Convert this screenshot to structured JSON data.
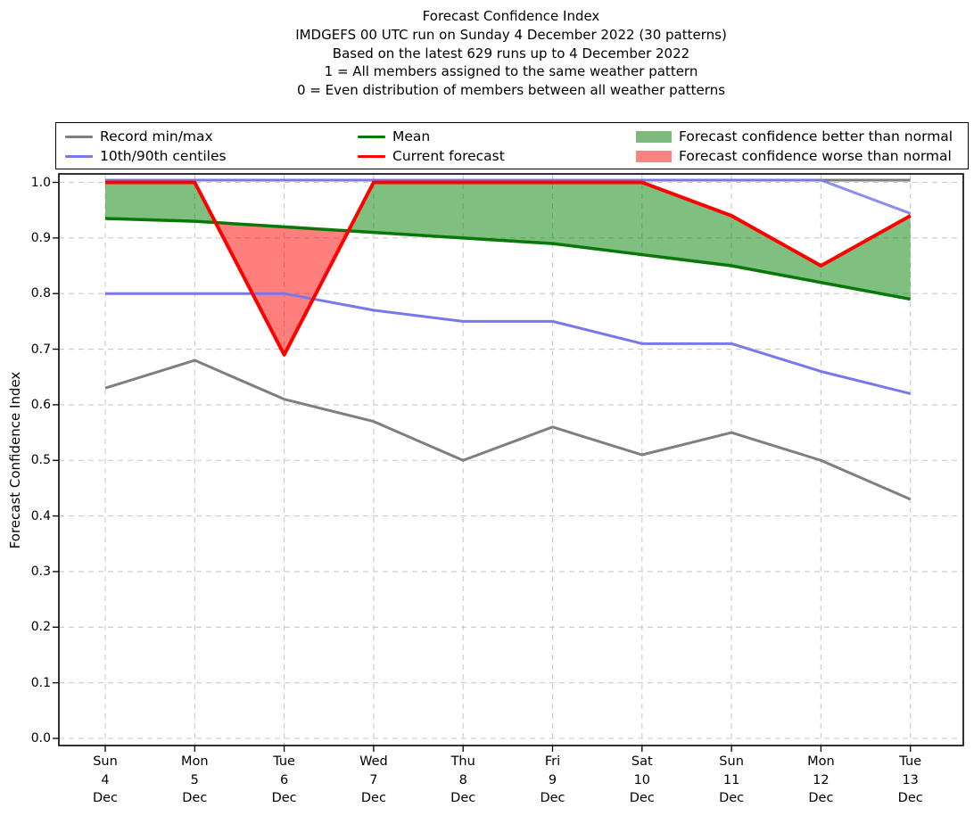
{
  "title_lines": [
    "Forecast Confidence Index",
    "IMDGEFS 00 UTC run on Sunday 4 December 2022 (30 patterns)",
    "Based on the latest 629 runs up to 4 December 2022",
    "1 = All members assigned to the same weather pattern",
    "0 = Even distribution of members between all weather patterns"
  ],
  "y_axis_label": "Forecast Confidence Index",
  "legend": {
    "entries": [
      {
        "label": "Record min/max",
        "swatch": "line",
        "color": "#7f7f7f"
      },
      {
        "label": "10th/90th centiles",
        "swatch": "line",
        "color": "#7878ee"
      },
      {
        "label": "Mean",
        "swatch": "line",
        "color": "#087808"
      },
      {
        "label": "Current forecast",
        "swatch": "line",
        "color": "#ff0000"
      },
      {
        "label": "Forecast confidence better than normal",
        "swatch": "patch",
        "color": "#7cbb7c"
      },
      {
        "label": "Forecast confidence worse than normal",
        "swatch": "patch",
        "color": "#fb8383"
      }
    ]
  },
  "chart_data": {
    "type": "line",
    "title": "Forecast Confidence Index",
    "x_tick_labels": [
      [
        "Sun",
        "4",
        "Dec"
      ],
      [
        "Mon",
        "5",
        "Dec"
      ],
      [
        "Tue",
        "6",
        "Dec"
      ],
      [
        "Wed",
        "7",
        "Dec"
      ],
      [
        "Thu",
        "8",
        "Dec"
      ],
      [
        "Fri",
        "9",
        "Dec"
      ],
      [
        "Sat",
        "10",
        "Dec"
      ],
      [
        "Sun",
        "11",
        "Dec"
      ],
      [
        "Mon",
        "12",
        "Dec"
      ],
      [
        "Tue",
        "13",
        "Dec"
      ]
    ],
    "y_ticks": [
      0.0,
      0.1,
      0.2,
      0.3,
      0.4,
      0.5,
      0.6,
      0.7,
      0.8,
      0.9,
      1.0
    ],
    "ylim": [
      -0.015,
      1.01
    ],
    "ylabel": "Forecast Confidence Index",
    "grid": true,
    "grid_color": "#cacaca",
    "series": [
      {
        "name": "Record max",
        "legend": "Record min/max",
        "color": "#7f7f7f",
        "width": 3,
        "values": [
          1.0,
          1.0,
          1.0,
          1.0,
          1.0,
          1.0,
          1.0,
          1.0,
          1.0,
          1.0
        ]
      },
      {
        "name": "Record min",
        "legend": "Record min/max",
        "color": "#7f7f7f",
        "width": 3,
        "values": [
          0.63,
          0.68,
          0.61,
          0.57,
          0.5,
          0.56,
          0.51,
          0.55,
          0.5,
          0.43
        ]
      },
      {
        "name": "90th centile",
        "legend": "10th/90th centiles",
        "color": "#7878ee",
        "width": 3,
        "values": [
          1.0,
          1.0,
          1.0,
          1.0,
          1.0,
          1.0,
          1.0,
          1.0,
          1.0,
          0.94
        ]
      },
      {
        "name": "10th centile",
        "legend": "10th/90th centiles",
        "color": "#7878ee",
        "width": 3,
        "values": [
          0.8,
          0.8,
          0.8,
          0.77,
          0.75,
          0.75,
          0.71,
          0.71,
          0.66,
          0.62
        ]
      },
      {
        "name": "Mean",
        "legend": "Mean",
        "color": "#087808",
        "width": 3.5,
        "values": [
          0.935,
          0.93,
          0.92,
          0.91,
          0.9,
          0.89,
          0.87,
          0.85,
          0.82,
          0.79
        ]
      },
      {
        "name": "Current forecast",
        "legend": "Current forecast",
        "color": "#ff0000",
        "width": 4,
        "values": [
          1.0,
          1.0,
          0.69,
          1.0,
          1.0,
          1.0,
          1.0,
          0.94,
          0.85,
          0.94
        ]
      }
    ],
    "fills": {
      "better": {
        "label": "Forecast confidence better than normal",
        "between": [
          "Current forecast",
          "Mean"
        ],
        "when": "current_above_mean",
        "color": "rgba(0,128,0,0.5)"
      },
      "worse": {
        "label": "Forecast confidence worse than normal",
        "between": [
          "Current forecast",
          "Mean"
        ],
        "when": "current_below_mean",
        "color": "rgba(255,0,0,0.5)"
      }
    }
  }
}
